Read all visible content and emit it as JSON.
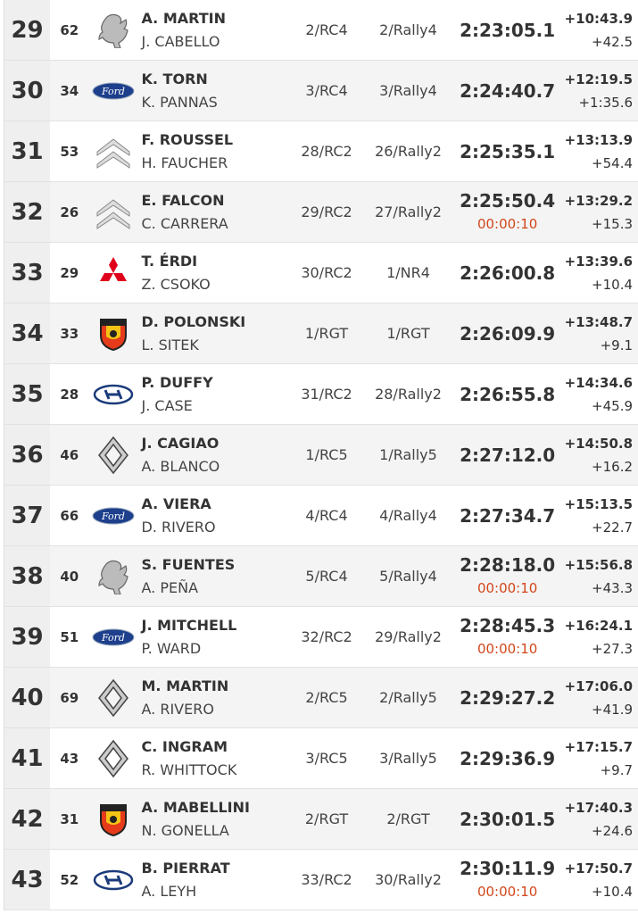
{
  "rows": [
    {
      "pos": "29",
      "num": "62",
      "brand": "peugeot",
      "driver": "A. MARTIN",
      "codriver": "J. CABELLO",
      "cls": "2/RC4",
      "grp": "2/Rally4",
      "time": "2:23:05.1",
      "penalty": "",
      "gap_first": "+10:43.9",
      "gap_prev": "+42.5"
    },
    {
      "pos": "30",
      "num": "34",
      "brand": "ford",
      "driver": "K. TORN",
      "codriver": "K. PANNAS",
      "cls": "3/RC4",
      "grp": "3/Rally4",
      "time": "2:24:40.7",
      "penalty": "",
      "gap_first": "+12:19.5",
      "gap_prev": "+1:35.6"
    },
    {
      "pos": "31",
      "num": "53",
      "brand": "citroen",
      "driver": "F. ROUSSEL",
      "codriver": "H. FAUCHER",
      "cls": "28/RC2",
      "grp": "26/Rally2",
      "time": "2:25:35.1",
      "penalty": "",
      "gap_first": "+13:13.9",
      "gap_prev": "+54.4"
    },
    {
      "pos": "32",
      "num": "26",
      "brand": "citroen",
      "driver": "E. FALCON",
      "codriver": "C. CARRERA",
      "cls": "29/RC2",
      "grp": "27/Rally2",
      "time": "2:25:50.4",
      "penalty": "00:00:10",
      "gap_first": "+13:29.2",
      "gap_prev": "+15.3"
    },
    {
      "pos": "33",
      "num": "29",
      "brand": "mitsubishi",
      "driver": "T. ÉRDI",
      "codriver": "Z. CSOKO",
      "cls": "30/RC2",
      "grp": "1/NR4",
      "time": "2:26:00.8",
      "penalty": "",
      "gap_first": "+13:39.6",
      "gap_prev": "+10.4"
    },
    {
      "pos": "34",
      "num": "33",
      "brand": "abarth",
      "driver": "D. POLONSKI",
      "codriver": "L. SITEK",
      "cls": "1/RGT",
      "grp": "1/RGT",
      "time": "2:26:09.9",
      "penalty": "",
      "gap_first": "+13:48.7",
      "gap_prev": "+9.1"
    },
    {
      "pos": "35",
      "num": "28",
      "brand": "hyundai",
      "driver": "P. DUFFY",
      "codriver": "J. CASE",
      "cls": "31/RC2",
      "grp": "28/Rally2",
      "time": "2:26:55.8",
      "penalty": "",
      "gap_first": "+14:34.6",
      "gap_prev": "+45.9"
    },
    {
      "pos": "36",
      "num": "46",
      "brand": "renault",
      "driver": "J. CAGIAO",
      "codriver": "A. BLANCO",
      "cls": "1/RC5",
      "grp": "1/Rally5",
      "time": "2:27:12.0",
      "penalty": "",
      "gap_first": "+14:50.8",
      "gap_prev": "+16.2"
    },
    {
      "pos": "37",
      "num": "66",
      "brand": "ford",
      "driver": "A. VIERA",
      "codriver": "D. RIVERO",
      "cls": "4/RC4",
      "grp": "4/Rally4",
      "time": "2:27:34.7",
      "penalty": "",
      "gap_first": "+15:13.5",
      "gap_prev": "+22.7"
    },
    {
      "pos": "38",
      "num": "40",
      "brand": "peugeot",
      "driver": "S. FUENTES",
      "codriver": "A. PEÑA",
      "cls": "5/RC4",
      "grp": "5/Rally4",
      "time": "2:28:18.0",
      "penalty": "00:00:10",
      "gap_first": "+15:56.8",
      "gap_prev": "+43.3"
    },
    {
      "pos": "39",
      "num": "51",
      "brand": "ford",
      "driver": "J. MITCHELL",
      "codriver": "P. WARD",
      "cls": "32/RC2",
      "grp": "29/Rally2",
      "time": "2:28:45.3",
      "penalty": "00:00:10",
      "gap_first": "+16:24.1",
      "gap_prev": "+27.3"
    },
    {
      "pos": "40",
      "num": "69",
      "brand": "renault",
      "driver": "M. MARTIN",
      "codriver": "A. RIVERO",
      "cls": "2/RC5",
      "grp": "2/Rally5",
      "time": "2:29:27.2",
      "penalty": "",
      "gap_first": "+17:06.0",
      "gap_prev": "+41.9"
    },
    {
      "pos": "41",
      "num": "43",
      "brand": "renault",
      "driver": "C. INGRAM",
      "codriver": "R. WHITTOCK",
      "cls": "3/RC5",
      "grp": "3/Rally5",
      "time": "2:29:36.9",
      "penalty": "",
      "gap_first": "+17:15.7",
      "gap_prev": "+9.7"
    },
    {
      "pos": "42",
      "num": "31",
      "brand": "abarth",
      "driver": "A. MABELLINI",
      "codriver": "N. GONELLA",
      "cls": "2/RGT",
      "grp": "2/RGT",
      "time": "2:30:01.5",
      "penalty": "",
      "gap_first": "+17:40.3",
      "gap_prev": "+24.6"
    },
    {
      "pos": "43",
      "num": "52",
      "brand": "hyundai",
      "driver": "B. PIERRAT",
      "codriver": "A. LEYH",
      "cls": "33/RC2",
      "grp": "30/Rally2",
      "time": "2:30:11.9",
      "penalty": "00:00:10",
      "gap_first": "+17:50.7",
      "gap_prev": "+10.4"
    }
  ],
  "brand_logos": {
    "ford": "Ford"
  },
  "colors": {
    "penalty": "#d2461a",
    "row_alt": "#f4f4f4"
  }
}
